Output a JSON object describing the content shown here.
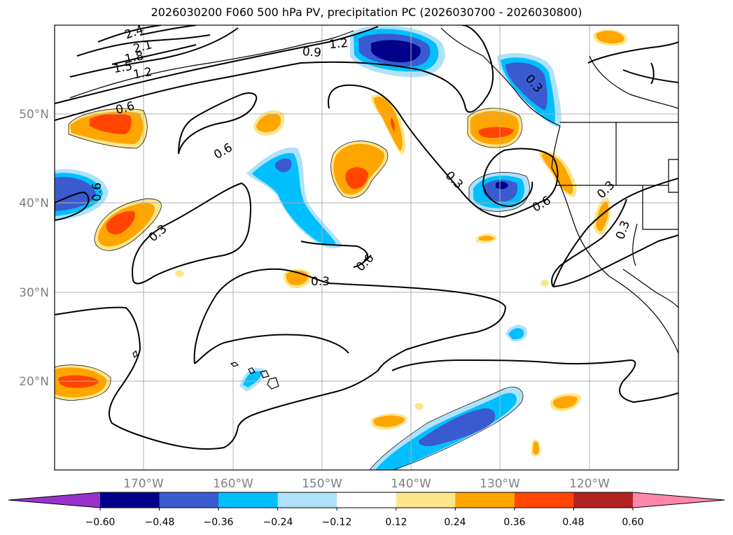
{
  "title": "2026030200 F060 500 hPa PV, precipitation PC (2026030700 - 2026030800)",
  "map": {
    "lat_labels": [
      "50°N",
      "40°N",
      "30°N",
      "20°N"
    ],
    "lon_labels": [
      "170°W",
      "160°W",
      "150°W",
      "140°W",
      "130°W",
      "120°W"
    ]
  },
  "pv_contour_labels": [
    "2.4",
    "2.1",
    "1.8",
    "1.5",
    "1.2",
    "1.2",
    "0.9",
    "0.6",
    "0.6",
    "0.6",
    "0.6",
    "0.3",
    "0.3",
    "0.3",
    "0.3",
    "0.3",
    "0.3",
    "0.6"
  ],
  "colorbar": {
    "tick_labels": [
      "−0.60",
      "−0.48",
      "−0.36",
      "−0.24",
      "−0.12",
      "0.12",
      "0.24",
      "0.36",
      "0.48",
      "0.60"
    ],
    "colors": [
      "#9933cc",
      "#00008b",
      "#3a5bd0",
      "#00bfff",
      "#aee2fa",
      "#ffffff",
      "#fde68a",
      "#ffa500",
      "#ff4500",
      "#b22222",
      "#ff88aa"
    ]
  }
}
